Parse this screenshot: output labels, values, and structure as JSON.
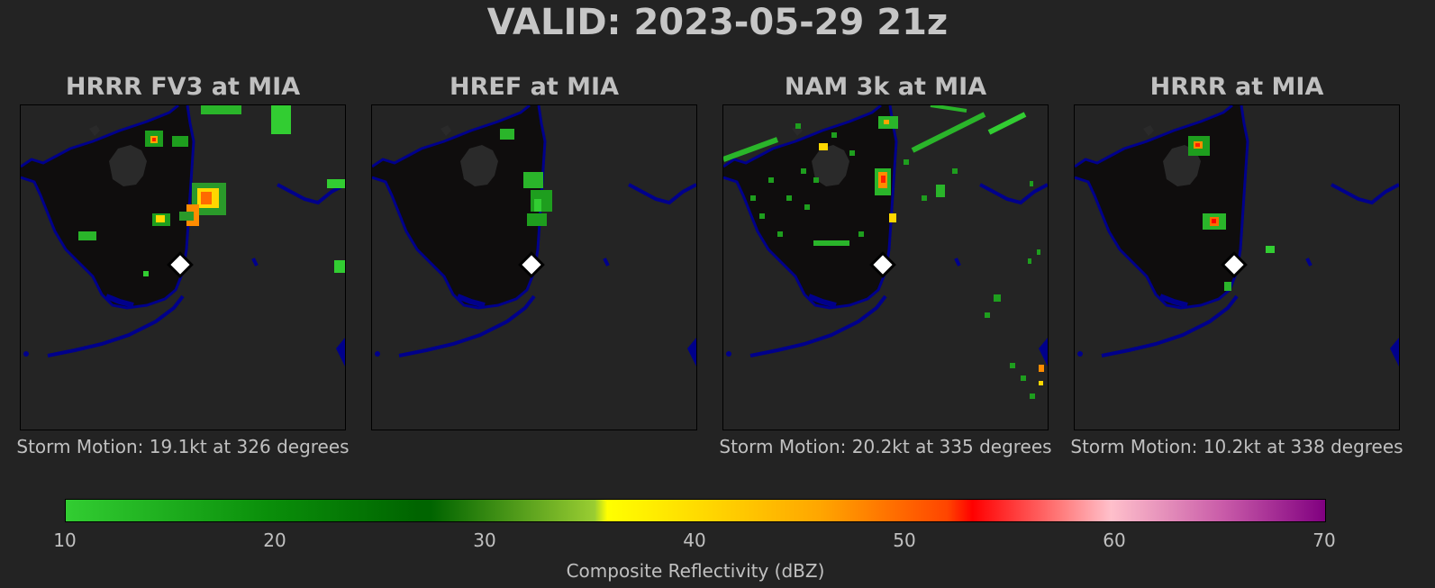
{
  "title": "VALID: 2023-05-29 21z",
  "panels": [
    {
      "title": "HRRR FV3 at MIA",
      "storm_motion": "Storm Motion: 19.1kt at 326 degrees"
    },
    {
      "title": "HREF at MIA",
      "storm_motion": ""
    },
    {
      "title": "NAM 3k at MIA",
      "storm_motion": "Storm Motion: 20.2kt at 335 degrees"
    },
    {
      "title": "HRRR at MIA",
      "storm_motion": "Storm Motion: 10.2kt at 338 degrees"
    }
  ],
  "colorbar": {
    "label": "Composite Reflectivity (dBZ)",
    "ticks": [
      "10",
      "20",
      "30",
      "40",
      "50",
      "60",
      "70"
    ],
    "range": [
      10,
      70
    ]
  },
  "colors": {
    "background": "#232323",
    "land": "#0f0d0d",
    "coast": "#00008b",
    "marker": "#ffffff"
  }
}
